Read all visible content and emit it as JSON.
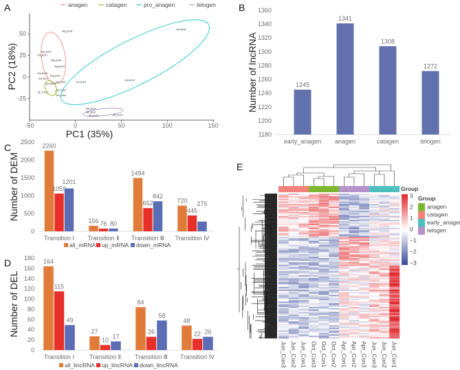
{
  "panels": {
    "a": "A",
    "b": "B",
    "c": "C",
    "d": "D",
    "e": "E"
  },
  "chart_data": [
    {
      "panel": "A",
      "type": "scatter",
      "xlabel": "PC1 (35%)",
      "ylabel": "PC2 (18%)",
      "xlim": [
        -50,
        150
      ],
      "ylim": [
        -50,
        70
      ],
      "xticks": [
        "-50",
        "0",
        "50",
        "100",
        "150"
      ],
      "yticks": [
        "-25",
        "0",
        "25",
        "50"
      ],
      "legend_position": "top",
      "grid": false,
      "series": [
        {
          "name": "anagen",
          "color": "#E8837B",
          "points": [
            {
              "label": "Aug_Con3",
              "x": -9,
              "y": 53
            },
            {
              "label": "Sep_Con2",
              "x": -32,
              "y": 29
            },
            {
              "label": "Oct_Con2",
              "x": -36,
              "y": 25
            },
            {
              "label": "Sep_Con3",
              "x": -21,
              "y": 19
            },
            {
              "label": "Aug_Con2",
              "x": -17,
              "y": 12
            },
            {
              "label": "Oct_Con3",
              "x": -36,
              "y": 4
            },
            {
              "label": "Aug_Con1",
              "x": -22,
              "y": 1
            },
            {
              "label": "Oct_Con1",
              "x": -35,
              "y": -2
            },
            {
              "label": "Sep_Con1",
              "x": -16,
              "y": -6
            }
          ]
        },
        {
          "name": "catagen",
          "color": "#7CAE00",
          "points": [
            {
              "label": "Jan_Con3",
              "x": -27,
              "y": -8
            },
            {
              "label": "Jan_Con1",
              "x": -30,
              "y": -18
            },
            {
              "label": "Jan_Con2",
              "x": -22,
              "y": -17
            },
            {
              "label": "Jan_Con3",
              "x": -22,
              "y": -20
            }
          ]
        },
        {
          "name": "pro_anagen",
          "color": "#00BFC4",
          "points": [
            {
              "label": "Jun_Con1",
              "x": 115,
              "y": 55
            },
            {
              "label": "Jun_Con3",
              "x": 6,
              "y": -6
            },
            {
              "label": "Jun_Con2",
              "x": 59,
              "y": -4
            }
          ]
        },
        {
          "name": "telogen",
          "color": "#9F84C9",
          "points": [
            {
              "label": "Mar_Con1",
              "x": 17,
              "y": -37
            },
            {
              "label": "Apr_Con1",
              "x": 17,
              "y": -41
            },
            {
              "label": "Apr_Con2",
              "x": 20,
              "y": -45
            },
            {
              "label": "Apr_Con3",
              "x": 46,
              "y": -44
            }
          ]
        }
      ]
    },
    {
      "panel": "B",
      "type": "bar",
      "ylabel": "Number of lncRNA",
      "ylim": [
        1180,
        1360
      ],
      "yticks": [
        "1180",
        "1200",
        "1220",
        "1240",
        "1260",
        "1280",
        "1300",
        "1320",
        "1340",
        "1360"
      ],
      "categories": [
        "early_anagen",
        "anagen",
        "catagen",
        "telogen"
      ],
      "values": [
        1245,
        1341,
        1308,
        1272
      ],
      "color": "#6270AE"
    },
    {
      "panel": "C",
      "type": "bar",
      "ylabel": "Number of DEM",
      "ylim": [
        0,
        2500
      ],
      "yticks": [
        "0",
        "500",
        "1000",
        "1500",
        "2000",
        "2500"
      ],
      "categories": [
        "Transition Ⅰ",
        "Transition Ⅱ",
        "Transition Ⅲ",
        "Transition Ⅳ"
      ],
      "legend_position": "bottom",
      "series": [
        {
          "name": "all_mRNA",
          "color": "#E07B39",
          "values": [
            2260,
            156,
            1494,
            720
          ]
        },
        {
          "name": "up_mRNA",
          "color": "#E8302A",
          "values": [
            1059,
            76,
            652,
            445
          ]
        },
        {
          "name": "down_mRNA",
          "color": "#5B6DB5",
          "values": [
            1201,
            80,
            842,
            275
          ]
        }
      ]
    },
    {
      "panel": "D",
      "type": "bar",
      "ylabel": "Number of DEL",
      "ylim": [
        0,
        180
      ],
      "yticks": [
        "0",
        "20",
        "40",
        "60",
        "80",
        "100",
        "120",
        "140",
        "160",
        "180"
      ],
      "categories": [
        "Transition Ⅰ",
        "Transition Ⅱ",
        "Transition Ⅲ",
        "Transition Ⅳ"
      ],
      "legend_position": "bottom",
      "series": [
        {
          "name": "all_lincRNA",
          "color": "#E07B39",
          "values": [
            164,
            27,
            84,
            48
          ]
        },
        {
          "name": "up_lincRNA",
          "color": "#E8302A",
          "values": [
            115,
            10,
            26,
            22
          ]
        },
        {
          "name": "down_lincRNA",
          "color": "#5B6DB5",
          "values": [
            49,
            17,
            58,
            26
          ]
        }
      ]
    },
    {
      "panel": "E",
      "type": "heatmap",
      "columns": [
        "Jun_Con3",
        "Jun_Con2",
        "Jun_Con1",
        "Oct_Con3",
        "Oct_Con1",
        "Oct_Con2",
        "Apr_Con1",
        "Apr_Con2",
        "Apr_Con3",
        "Jun_Con3",
        "Jun_Con2",
        "Jun_Con1"
      ],
      "column_groups": [
        "catagen",
        "catagen",
        "catagen",
        "anagen",
        "anagen",
        "anagen",
        "telogen",
        "telogen",
        "telogen",
        "early_anagen",
        "early_anagen",
        "early_anagen"
      ],
      "annotation_title": "Group",
      "legend_title": "Group",
      "groups": [
        {
          "name": "anagen",
          "color": "#7CB82F"
        },
        {
          "name": "catagen",
          "color": "#F4827A"
        },
        {
          "name": "early_anagen",
          "color": "#4DBFBF"
        },
        {
          "name": "telogen",
          "color": "#B593C9"
        }
      ],
      "color_scale": {
        "min": -3,
        "max": 3,
        "low": "#3B4A9A",
        "mid": "#FFFFFF",
        "high": "#E0262A",
        "ticks": [
          "3",
          "2",
          "1",
          "0",
          "−1",
          "−2",
          "−3"
        ]
      },
      "legend_position": "right"
    }
  ]
}
